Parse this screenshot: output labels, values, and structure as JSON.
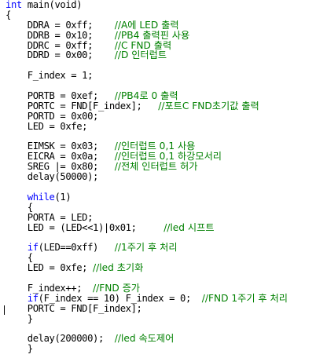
{
  "editor": {
    "language": "C",
    "colors": {
      "keyword": "#0000ff",
      "comment": "#008000",
      "text": "#000000",
      "background": "#ffffff"
    },
    "lines": [
      {
        "indent": 0,
        "keyword": "int",
        "code": " main(void)",
        "comment": ""
      },
      {
        "indent": 0,
        "keyword": "",
        "code": "{",
        "comment": ""
      },
      {
        "indent": 4,
        "keyword": "",
        "code": "DDRA = 0xff;    ",
        "comment": "//A에 LED 출력"
      },
      {
        "indent": 4,
        "keyword": "",
        "code": "DDRB = 0x10;    ",
        "comment": "//PB4 출력핀 사용"
      },
      {
        "indent": 4,
        "keyword": "",
        "code": "DDRC = 0xff;    ",
        "comment": "//C FND 출력"
      },
      {
        "indent": 4,
        "keyword": "",
        "code": "DDRD = 0x00;    ",
        "comment": "//D 인터럽트"
      },
      {
        "indent": 0,
        "keyword": "",
        "code": "",
        "comment": ""
      },
      {
        "indent": 4,
        "keyword": "",
        "code": "F_index = 1;",
        "comment": ""
      },
      {
        "indent": 0,
        "keyword": "",
        "code": "",
        "comment": ""
      },
      {
        "indent": 4,
        "keyword": "",
        "code": "PORTB = 0xef;   ",
        "comment": "//PB4로 0 출력"
      },
      {
        "indent": 4,
        "keyword": "",
        "code": "PORTC = FND[F_index];   ",
        "comment": "//포트C FND초기값 출력"
      },
      {
        "indent": 4,
        "keyword": "",
        "code": "PORTD = 0x00;",
        "comment": ""
      },
      {
        "indent": 4,
        "keyword": "",
        "code": "LED = 0xfe;",
        "comment": ""
      },
      {
        "indent": 0,
        "keyword": "",
        "code": "",
        "comment": ""
      },
      {
        "indent": 4,
        "keyword": "",
        "code": "EIMSK = 0x03;   ",
        "comment": "//인터럽트 0,1 사용"
      },
      {
        "indent": 4,
        "keyword": "",
        "code": "EICRA = 0x0a;   ",
        "comment": "//인터럽트 0,1 하강모서리"
      },
      {
        "indent": 4,
        "keyword": "",
        "code": "SREG |= 0x80;   ",
        "comment": "//전체 인터럽트 허가"
      },
      {
        "indent": 4,
        "keyword": "",
        "code": "delay(50000);",
        "comment": ""
      },
      {
        "indent": 0,
        "keyword": "",
        "code": "",
        "comment": ""
      },
      {
        "indent": 4,
        "keyword": "while",
        "code": "(1)",
        "comment": ""
      },
      {
        "indent": 4,
        "keyword": "",
        "code": "{",
        "comment": ""
      },
      {
        "indent": 4,
        "keyword": "",
        "code": "PORTA = LED;",
        "comment": ""
      },
      {
        "indent": 4,
        "keyword": "",
        "code": "LED = (LED<<1)|0x01;     ",
        "comment": "//led 시프트"
      },
      {
        "indent": 0,
        "keyword": "",
        "code": "",
        "comment": ""
      },
      {
        "indent": 4,
        "keyword": "if",
        "code": "(LED==0xff)   ",
        "comment": "//1주기 후 처리"
      },
      {
        "indent": 4,
        "keyword": "",
        "code": "{",
        "comment": ""
      },
      {
        "indent": 4,
        "keyword": "",
        "code": "LED = 0xfe; ",
        "comment": "//led 초기화"
      },
      {
        "indent": 0,
        "keyword": "",
        "code": "",
        "comment": ""
      },
      {
        "indent": 4,
        "keyword": "",
        "code": "F_index++;  ",
        "comment": "//FND 증가"
      },
      {
        "indent": 4,
        "keyword": "if",
        "code": "(F_index == 10) F_index = 0;  ",
        "comment": "//FND 1주기 후 처리"
      },
      {
        "indent": 4,
        "keyword": "",
        "code": "PORTC = FND[F_index];",
        "comment": ""
      },
      {
        "indent": 4,
        "keyword": "",
        "code": "}",
        "comment": ""
      },
      {
        "indent": 0,
        "keyword": "",
        "code": "",
        "comment": ""
      },
      {
        "indent": 4,
        "keyword": "",
        "code": "delay(200000);  ",
        "comment": "//led 속도제어"
      },
      {
        "indent": 4,
        "keyword": "",
        "code": "}",
        "comment": ""
      }
    ]
  }
}
